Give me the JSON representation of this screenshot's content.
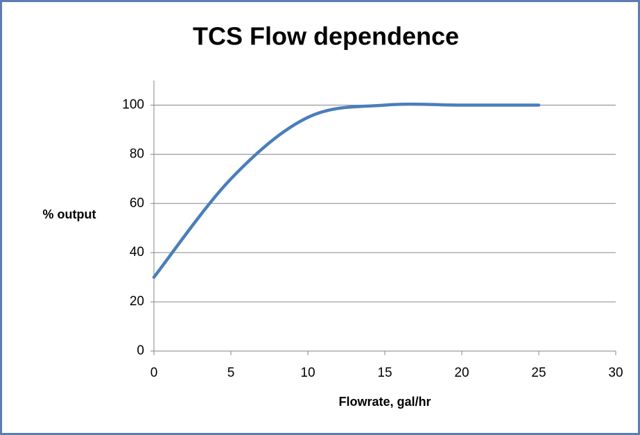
{
  "chart_data": {
    "type": "line",
    "title": "TCS Flow dependence",
    "x_label": "Flowrate, gal/hr",
    "y_label": "% output",
    "x": [
      0,
      5,
      10,
      15,
      20,
      25
    ],
    "series": [
      {
        "name": "% output",
        "color": "#4a7ebb",
        "values": [
          30,
          70,
          95,
          100,
          100,
          100
        ]
      }
    ],
    "xlim": [
      0,
      30
    ],
    "xticks": [
      0,
      5,
      10,
      15,
      20,
      25,
      30
    ],
    "ylim": [
      0,
      110
    ],
    "yticks": [
      0,
      20,
      40,
      60,
      80,
      100
    ],
    "grid": true,
    "smooth": true
  }
}
